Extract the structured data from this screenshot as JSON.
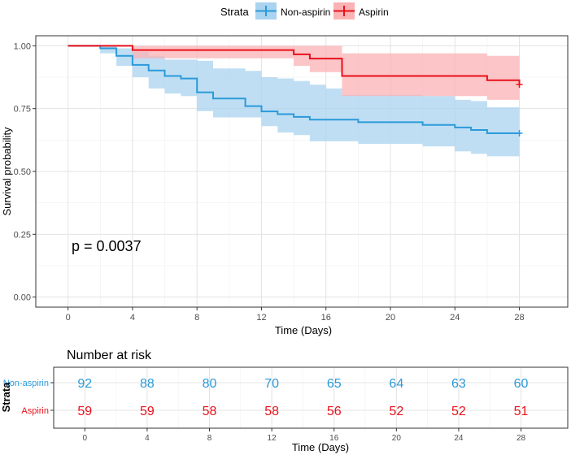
{
  "legend": {
    "title": "Strata",
    "items": [
      {
        "label": "Non-aspirin",
        "color": "#2b9ad9"
      },
      {
        "label": "Aspirin",
        "color": "#e8111b"
      }
    ]
  },
  "pvalue_text": "p = 0.0037",
  "chart_data": {
    "type": "line",
    "subtype": "kaplan-meier",
    "title": "",
    "xlabel": "Time (Days)",
    "ylabel": "Survival probability",
    "xlim": [
      -2,
      31
    ],
    "ylim": [
      -0.04,
      1.04
    ],
    "xticks": [
      0,
      4,
      8,
      12,
      16,
      20,
      24,
      28
    ],
    "yticks": [
      0.0,
      0.25,
      0.5,
      0.75,
      1.0
    ],
    "ytick_labels": [
      "0.00",
      "0.25",
      "0.50",
      "0.75",
      "1.00"
    ],
    "legend_position": "top",
    "series": [
      {
        "name": "Non-aspirin",
        "color": "#2b9ad9",
        "fill": "#a9d3ef",
        "steps": [
          [
            0,
            1.0
          ],
          [
            2,
            0.99
          ],
          [
            3,
            0.96
          ],
          [
            4,
            0.924
          ],
          [
            5,
            0.902
          ],
          [
            6,
            0.88
          ],
          [
            7,
            0.87
          ],
          [
            8,
            0.815
          ],
          [
            9,
            0.79
          ],
          [
            11,
            0.79
          ],
          [
            11,
            0.76
          ],
          [
            12,
            0.739
          ],
          [
            13,
            0.728
          ],
          [
            14,
            0.717
          ],
          [
            15,
            0.706
          ],
          [
            18,
            0.696
          ],
          [
            20,
            0.696
          ],
          [
            22,
            0.685
          ],
          [
            24,
            0.675
          ],
          [
            25,
            0.665
          ],
          [
            26,
            0.652
          ],
          [
            28,
            0.652
          ]
        ],
        "upper": [
          [
            0,
            1.0
          ],
          [
            2,
            1.0
          ],
          [
            3,
            0.99
          ],
          [
            4,
            0.975
          ],
          [
            5,
            0.96
          ],
          [
            6,
            0.945
          ],
          [
            8,
            0.94
          ],
          [
            9,
            0.91
          ],
          [
            11,
            0.9
          ],
          [
            12,
            0.875
          ],
          [
            13,
            0.87
          ],
          [
            14,
            0.86
          ],
          [
            15,
            0.845
          ],
          [
            16,
            0.83
          ],
          [
            17,
            0.805
          ],
          [
            20,
            0.805
          ],
          [
            22,
            0.8
          ],
          [
            24,
            0.785
          ],
          [
            25,
            0.78
          ],
          [
            26,
            0.755
          ],
          [
            28,
            0.755
          ]
        ],
        "lower": [
          [
            0,
            1.0
          ],
          [
            2,
            0.97
          ],
          [
            3,
            0.92
          ],
          [
            4,
            0.875
          ],
          [
            5,
            0.83
          ],
          [
            6,
            0.81
          ],
          [
            7,
            0.8
          ],
          [
            8,
            0.74
          ],
          [
            9,
            0.715
          ],
          [
            11,
            0.715
          ],
          [
            12,
            0.68
          ],
          [
            13,
            0.655
          ],
          [
            14,
            0.645
          ],
          [
            15,
            0.62
          ],
          [
            18,
            0.61
          ],
          [
            20,
            0.61
          ],
          [
            22,
            0.6
          ],
          [
            24,
            0.58
          ],
          [
            25,
            0.57
          ],
          [
            26,
            0.56
          ],
          [
            28,
            0.56
          ]
        ],
        "censor_x": 28
      },
      {
        "name": "Aspirin",
        "color": "#e8111b",
        "fill": "#fbb2b4",
        "steps": [
          [
            0,
            1.0
          ],
          [
            4,
            0.983
          ],
          [
            14,
            0.966
          ],
          [
            15,
            0.949
          ],
          [
            17,
            0.88
          ],
          [
            26,
            0.863
          ],
          [
            28,
            0.846
          ]
        ],
        "upper": [
          [
            0,
            1.0
          ],
          [
            4,
            1.0
          ],
          [
            14,
            1.0
          ],
          [
            15,
            1.0
          ],
          [
            17,
            0.97
          ],
          [
            26,
            0.96
          ],
          [
            28,
            0.96
          ]
        ],
        "lower": [
          [
            0,
            1.0
          ],
          [
            4,
            0.95
          ],
          [
            14,
            0.92
          ],
          [
            15,
            0.895
          ],
          [
            17,
            0.8
          ],
          [
            26,
            0.785
          ],
          [
            28,
            0.785
          ]
        ],
        "censor_x": 28
      }
    ]
  },
  "risk_table": {
    "title": "Number at risk",
    "ylabel": "Strata",
    "xlabel": "Time (Days)",
    "times": [
      0,
      4,
      8,
      12,
      16,
      20,
      24,
      28
    ],
    "rows": [
      {
        "name": "Non-aspirin",
        "color": "#2b9ad9",
        "values": [
          92,
          88,
          80,
          70,
          65,
          64,
          63,
          60
        ]
      },
      {
        "name": "Aspirin",
        "color": "#e8111b",
        "values": [
          59,
          59,
          58,
          58,
          56,
          52,
          52,
          51
        ]
      }
    ]
  }
}
